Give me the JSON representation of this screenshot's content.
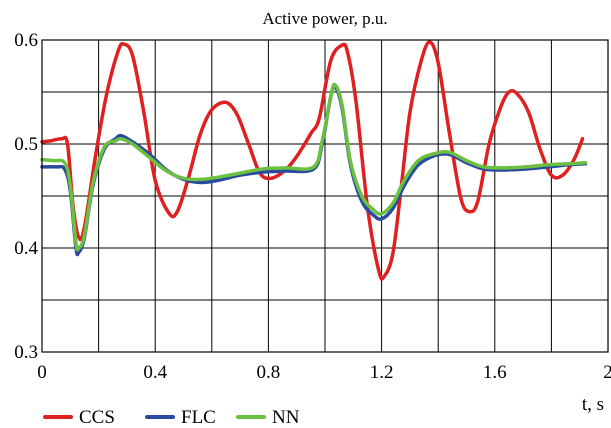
{
  "chart_data": {
    "type": "line",
    "title": "Active power, p.u.",
    "xlabel": "t, s",
    "ylabel": "",
    "xlim": [
      0,
      2
    ],
    "ylim": [
      0.3,
      0.6
    ],
    "xticks": [
      0,
      0.4,
      0.8,
      1.2,
      1.6,
      2
    ],
    "xtick_labels": [
      "0",
      "0.4",
      "0.8",
      "1.2",
      "1.6",
      "2"
    ],
    "yticks": [
      0.3,
      0.4,
      0.5,
      0.6
    ],
    "ytick_labels": [
      "0.3",
      "0.4",
      "0.5",
      "0.6"
    ],
    "x_minor_grid_step": 0.2,
    "y_minor_grid_step": 0.05,
    "grid": true,
    "legend_position": "bottom-left",
    "series": [
      {
        "name": "CCS",
        "color": "#e02020",
        "points": [
          [
            0,
            0.502
          ],
          [
            0.03,
            0.503
          ],
          [
            0.07,
            0.505
          ],
          [
            0.09,
            0.5
          ],
          [
            0.11,
            0.44
          ],
          [
            0.13,
            0.41
          ],
          [
            0.15,
            0.42
          ],
          [
            0.19,
            0.49
          ],
          [
            0.23,
            0.55
          ],
          [
            0.27,
            0.59
          ],
          [
            0.29,
            0.596
          ],
          [
            0.32,
            0.585
          ],
          [
            0.36,
            0.53
          ],
          [
            0.4,
            0.465
          ],
          [
            0.45,
            0.433
          ],
          [
            0.48,
            0.436
          ],
          [
            0.52,
            0.47
          ],
          [
            0.56,
            0.51
          ],
          [
            0.6,
            0.533
          ],
          [
            0.65,
            0.54
          ],
          [
            0.69,
            0.528
          ],
          [
            0.73,
            0.5
          ],
          [
            0.77,
            0.472
          ],
          [
            0.81,
            0.467
          ],
          [
            0.86,
            0.475
          ],
          [
            0.9,
            0.488
          ],
          [
            0.95,
            0.51
          ],
          [
            0.98,
            0.525
          ],
          [
            1.02,
            0.58
          ],
          [
            1.06,
            0.595
          ],
          [
            1.08,
            0.588
          ],
          [
            1.11,
            0.54
          ],
          [
            1.15,
            0.44
          ],
          [
            1.19,
            0.378
          ],
          [
            1.21,
            0.373
          ],
          [
            1.24,
            0.395
          ],
          [
            1.27,
            0.46
          ],
          [
            1.3,
            0.53
          ],
          [
            1.34,
            0.58
          ],
          [
            1.37,
            0.598
          ],
          [
            1.4,
            0.578
          ],
          [
            1.44,
            0.51
          ],
          [
            1.48,
            0.448
          ],
          [
            1.51,
            0.435
          ],
          [
            1.54,
            0.445
          ],
          [
            1.58,
            0.5
          ],
          [
            1.62,
            0.535
          ],
          [
            1.65,
            0.55
          ],
          [
            1.68,
            0.548
          ],
          [
            1.72,
            0.53
          ],
          [
            1.76,
            0.495
          ],
          [
            1.8,
            0.47
          ],
          [
            1.84,
            0.47
          ],
          [
            1.88,
            0.485
          ],
          [
            1.91,
            0.505
          ]
        ]
      },
      {
        "name": "FLC",
        "color": "#2a4aa0",
        "points": [
          [
            0,
            0.478
          ],
          [
            0.05,
            0.478
          ],
          [
            0.08,
            0.476
          ],
          [
            0.1,
            0.455
          ],
          [
            0.12,
            0.4
          ],
          [
            0.13,
            0.396
          ],
          [
            0.15,
            0.41
          ],
          [
            0.18,
            0.46
          ],
          [
            0.22,
            0.495
          ],
          [
            0.26,
            0.505
          ],
          [
            0.28,
            0.508
          ],
          [
            0.32,
            0.502
          ],
          [
            0.38,
            0.49
          ],
          [
            0.44,
            0.475
          ],
          [
            0.5,
            0.466
          ],
          [
            0.56,
            0.463
          ],
          [
            0.62,
            0.465
          ],
          [
            0.7,
            0.47
          ],
          [
            0.78,
            0.473
          ],
          [
            0.86,
            0.474
          ],
          [
            0.96,
            0.476
          ],
          [
            0.99,
            0.5
          ],
          [
            1.02,
            0.545
          ],
          [
            1.035,
            0.555
          ],
          [
            1.06,
            0.535
          ],
          [
            1.09,
            0.48
          ],
          [
            1.13,
            0.445
          ],
          [
            1.17,
            0.432
          ],
          [
            1.2,
            0.428
          ],
          [
            1.24,
            0.438
          ],
          [
            1.28,
            0.46
          ],
          [
            1.33,
            0.48
          ],
          [
            1.39,
            0.489
          ],
          [
            1.44,
            0.49
          ],
          [
            1.5,
            0.482
          ],
          [
            1.56,
            0.476
          ],
          [
            1.63,
            0.475
          ],
          [
            1.71,
            0.476
          ],
          [
            1.79,
            0.478
          ],
          [
            1.86,
            0.48
          ],
          [
            1.92,
            0.481
          ]
        ]
      },
      {
        "name": "NN",
        "color": "#6cc040",
        "points": [
          [
            0,
            0.485
          ],
          [
            0.04,
            0.484
          ],
          [
            0.08,
            0.482
          ],
          [
            0.1,
            0.46
          ],
          [
            0.12,
            0.405
          ],
          [
            0.13,
            0.4
          ],
          [
            0.15,
            0.412
          ],
          [
            0.18,
            0.462
          ],
          [
            0.22,
            0.497
          ],
          [
            0.26,
            0.503
          ],
          [
            0.28,
            0.505
          ],
          [
            0.32,
            0.5
          ],
          [
            0.38,
            0.487
          ],
          [
            0.44,
            0.474
          ],
          [
            0.5,
            0.467
          ],
          [
            0.56,
            0.466
          ],
          [
            0.62,
            0.468
          ],
          [
            0.7,
            0.472
          ],
          [
            0.78,
            0.476
          ],
          [
            0.86,
            0.477
          ],
          [
            0.96,
            0.478
          ],
          [
            0.99,
            0.503
          ],
          [
            1.02,
            0.545
          ],
          [
            1.035,
            0.557
          ],
          [
            1.06,
            0.538
          ],
          [
            1.09,
            0.483
          ],
          [
            1.13,
            0.45
          ],
          [
            1.17,
            0.437
          ],
          [
            1.2,
            0.433
          ],
          [
            1.24,
            0.443
          ],
          [
            1.28,
            0.465
          ],
          [
            1.33,
            0.484
          ],
          [
            1.39,
            0.491
          ],
          [
            1.44,
            0.492
          ],
          [
            1.5,
            0.484
          ],
          [
            1.56,
            0.478
          ],
          [
            1.63,
            0.477
          ],
          [
            1.71,
            0.478
          ],
          [
            1.79,
            0.48
          ],
          [
            1.86,
            0.481
          ],
          [
            1.92,
            0.482
          ]
        ]
      }
    ]
  }
}
